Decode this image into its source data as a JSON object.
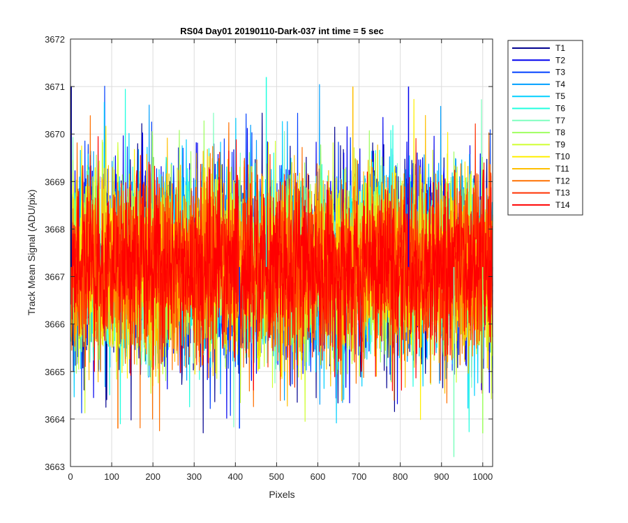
{
  "chart_data": {
    "type": "line",
    "title": "RS04 Day01 20190110-Dark-037 int time = 5 sec",
    "xlabel": "Pixels",
    "ylabel": "Track Mean Signal (ADU/pix)",
    "xlim": [
      0,
      1024
    ],
    "ylim": [
      3663,
      3672
    ],
    "xticks": [
      0,
      100,
      200,
      300,
      400,
      500,
      600,
      700,
      800,
      900,
      1000
    ],
    "yticks": [
      3663,
      3664,
      3665,
      3666,
      3667,
      3668,
      3669,
      3670,
      3671,
      3672
    ],
    "grid": true,
    "legend_position": "outside-top-right",
    "noise_model": {
      "x_start": 1,
      "x_end": 1024,
      "mean": 3667.2,
      "typical_range": [
        3664.0,
        3671.0
      ],
      "note_extremes": [
        {
          "x": 2,
          "y": 3671.0
        },
        {
          "x": 475,
          "y": 3671.2
        },
        {
          "x": 685,
          "y": 3671.0
        },
        {
          "x": 820,
          "y": 3671.0
        },
        {
          "x": 930,
          "y": 3663.2
        },
        {
          "x": 115,
          "y": 3663.8
        },
        {
          "x": 410,
          "y": 3663.8
        },
        {
          "x": 1000,
          "y": 3663.7
        }
      ]
    },
    "series": [
      {
        "name": "T1",
        "color": "#00008f",
        "mean": 3667.25,
        "std": 1.05
      },
      {
        "name": "T2",
        "color": "#0000ef",
        "mean": 3667.25,
        "std": 1.05
      },
      {
        "name": "T3",
        "color": "#0040ff",
        "mean": 3667.25,
        "std": 1.0
      },
      {
        "name": "T4",
        "color": "#009fff",
        "mean": 3667.25,
        "std": 1.0
      },
      {
        "name": "T5",
        "color": "#00cfff",
        "mean": 3667.25,
        "std": 1.0
      },
      {
        "name": "T6",
        "color": "#20ffdf",
        "mean": 3667.25,
        "std": 0.95
      },
      {
        "name": "T7",
        "color": "#7fffbf",
        "mean": 3667.25,
        "std": 0.95
      },
      {
        "name": "T8",
        "color": "#9fff60",
        "mean": 3667.25,
        "std": 0.95
      },
      {
        "name": "T9",
        "color": "#cfff30",
        "mean": 3667.25,
        "std": 0.95
      },
      {
        "name": "T10",
        "color": "#ffef00",
        "mean": 3667.2,
        "std": 0.95
      },
      {
        "name": "T11",
        "color": "#ffbf00",
        "mean": 3667.2,
        "std": 0.95
      },
      {
        "name": "T12",
        "color": "#ff7000",
        "mean": 3667.2,
        "std": 0.95
      },
      {
        "name": "T13",
        "color": "#ff3000",
        "mean": 3667.2,
        "std": 0.9
      },
      {
        "name": "T14",
        "color": "#ff0000",
        "mean": 3667.2,
        "std": 0.9
      }
    ]
  }
}
